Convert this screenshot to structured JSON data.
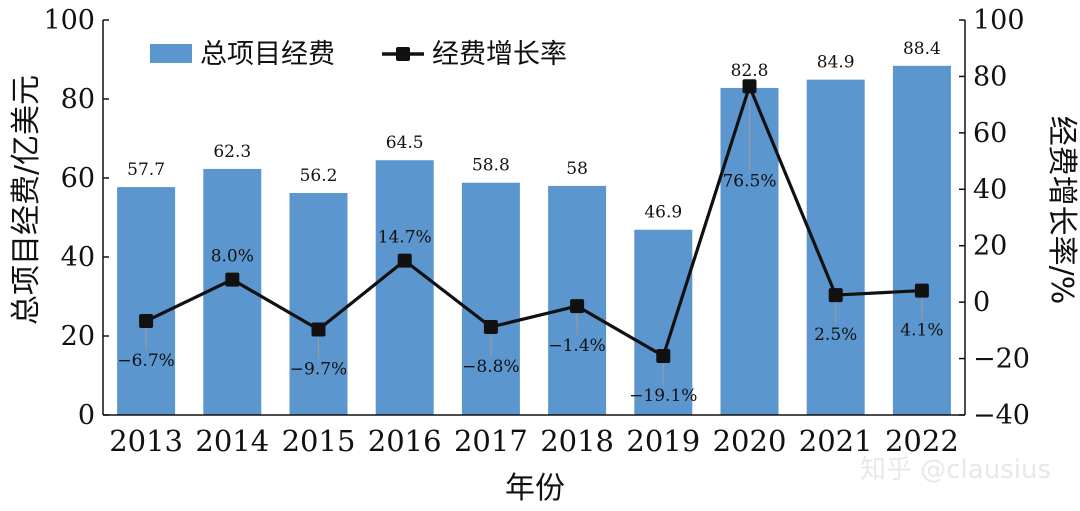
{
  "chart_data": {
    "type": "bar+line",
    "categories": [
      "2013",
      "2014",
      "2015",
      "2016",
      "2017",
      "2018",
      "2019",
      "2020",
      "2021",
      "2022"
    ],
    "series": [
      {
        "name": "总项目经费",
        "type": "bar",
        "axis": "left",
        "color": "#5b96cf",
        "values": [
          57.7,
          62.3,
          56.2,
          64.5,
          58.8,
          58,
          46.9,
          82.8,
          84.9,
          88.4
        ],
        "labels": [
          "57.7",
          "62.3",
          "56.2",
          "64.5",
          "58.8",
          "58",
          "46.9",
          "82.8",
          "84.9",
          "88.4"
        ]
      },
      {
        "name": "经费增长率",
        "type": "line",
        "axis": "right",
        "color": "#111111",
        "values": [
          -6.7,
          8.0,
          -9.7,
          14.7,
          -8.8,
          -1.4,
          -19.1,
          76.5,
          2.5,
          4.1
        ],
        "labels": [
          "−6.7%",
          "8.0%",
          "−9.7%",
          "14.7%",
          "−8.8%",
          "−1.4%",
          "−19.1%",
          "76.5%",
          "2.5%",
          "4.1%"
        ]
      }
    ],
    "xlabel": "年份",
    "ylabel": "总项目经费/亿美元",
    "y2label": "经费增长率/%",
    "ylim": [
      0,
      100
    ],
    "y2lim": [
      -40,
      100
    ],
    "yticks": [
      "0",
      "20",
      "40",
      "60",
      "80",
      "100"
    ],
    "y2ticks": [
      "−40",
      "−20",
      "0",
      "20",
      "40",
      "60",
      "80",
      "100"
    ],
    "legend": "top-left",
    "grid": false
  },
  "watermark": "知乎 @clausius"
}
